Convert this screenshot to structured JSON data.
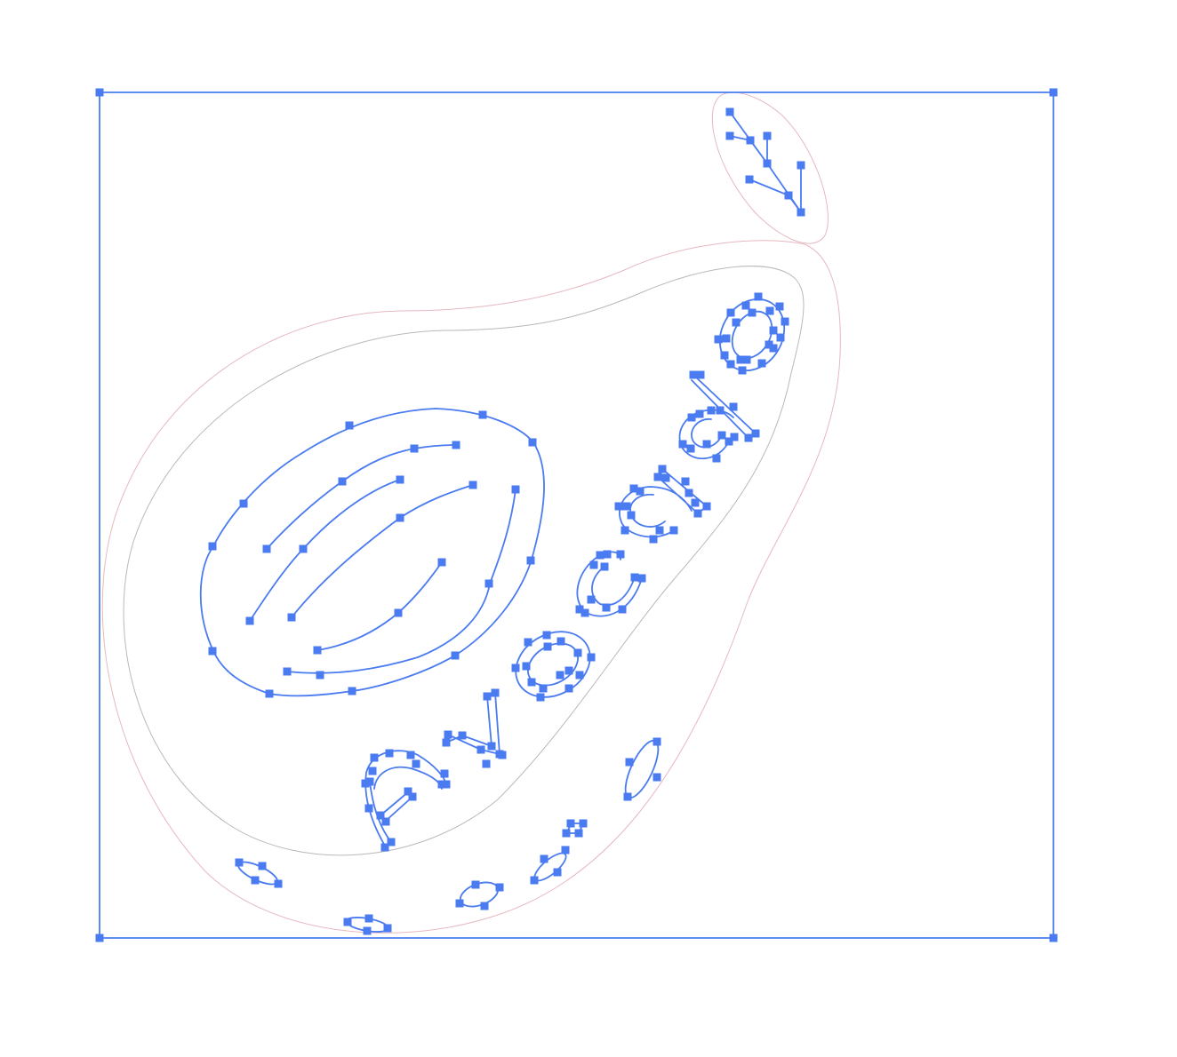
{
  "colors": {
    "selection": "#4a7bf0",
    "outer_outline": "#e6b8c0",
    "inner_outline": "#b9b9b9",
    "background": "#ffffff"
  },
  "artwork_word": "avocado"
}
